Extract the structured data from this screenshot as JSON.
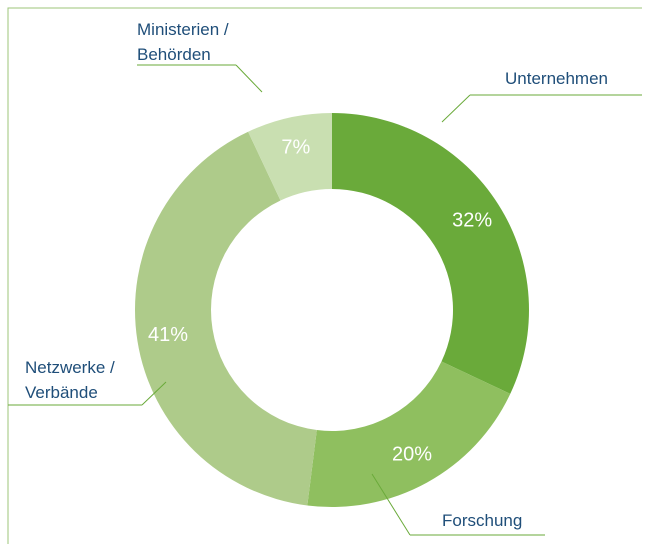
{
  "chart_data": {
    "type": "donut",
    "categories": [
      "Unternehmen",
      "Forschung",
      "Netzwerke / Verbände",
      "Ministerien / Behörden"
    ],
    "values": [
      32,
      20,
      41,
      7
    ],
    "value_labels": [
      "32%",
      "20%",
      "41%",
      "7%"
    ],
    "colors": [
      "#6aaa3a",
      "#8fbf5f",
      "#aecb8a",
      "#c9dfb1"
    ]
  }
}
